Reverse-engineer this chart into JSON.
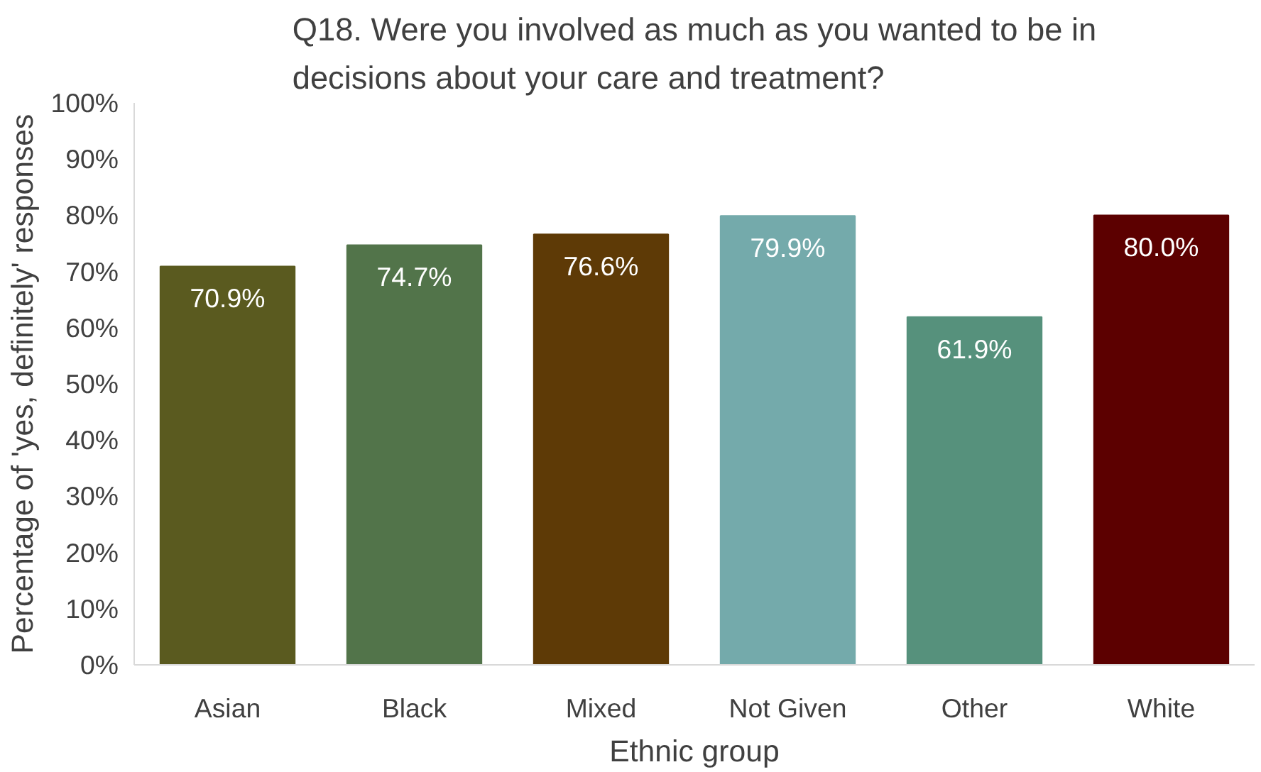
{
  "chart_data": {
    "type": "bar",
    "title": "Q18. Were you involved as much as you wanted to be in decisions about your care and treatment?",
    "xlabel": "Ethnic group",
    "ylabel": "Percentage of 'yes, definitely' responses",
    "categories": [
      "Asian",
      "Black",
      "Mixed",
      "Not Given",
      "Other",
      "White"
    ],
    "values": [
      70.9,
      74.7,
      76.6,
      79.9,
      61.9,
      80.0
    ],
    "colors": [
      "#5a5a1f",
      "#52744a",
      "#5e3a06",
      "#74aaab",
      "#56917c",
      "#5c0000"
    ],
    "value_labels": [
      "70.9%",
      "74.7%",
      "76.6%",
      "79.9%",
      "61.9%",
      "80.0%"
    ],
    "ylim": [
      0,
      100
    ],
    "yticks": [
      {
        "value": 0,
        "label": "0%"
      },
      {
        "value": 10,
        "label": "10%"
      },
      {
        "value": 20,
        "label": "20%"
      },
      {
        "value": 30,
        "label": "30%"
      },
      {
        "value": 40,
        "label": "40%"
      },
      {
        "value": 50,
        "label": "50%"
      },
      {
        "value": 60,
        "label": "60%"
      },
      {
        "value": 70,
        "label": "70%"
      },
      {
        "value": 80,
        "label": "80%"
      },
      {
        "value": 90,
        "label": "90%"
      },
      {
        "value": 100,
        "label": "100%"
      }
    ],
    "grid": false
  }
}
